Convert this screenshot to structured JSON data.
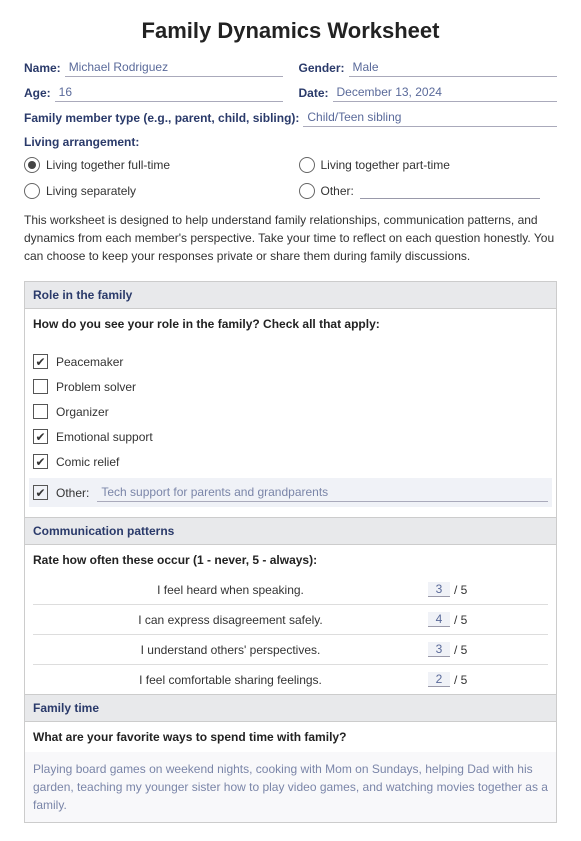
{
  "title": "Family Dynamics Worksheet",
  "fields": {
    "name_label": "Name:",
    "name_value": "Michael Rodriguez",
    "gender_label": "Gender:",
    "gender_value": "Male",
    "age_label": "Age:",
    "age_value": "16",
    "date_label": "Date:",
    "date_value": "December 13, 2024",
    "member_type_label": "Family member type (e.g., parent, child, sibling):",
    "member_type_value": "Child/Teen sibling"
  },
  "living": {
    "heading": "Living arrangement:",
    "options": {
      "full": "Living together full-time",
      "part": "Living together part-time",
      "sep": "Living separately",
      "other": "Other:"
    },
    "other_value": ""
  },
  "intro": "This worksheet is designed to help understand family relationships, communication patterns, and dynamics from each member's perspective. Take your time to reflect on each question honestly. You can choose to keep your responses private or share them during family discussions.",
  "role": {
    "header": "Role in the family",
    "question": "How do you see your role in the family? Check all that apply:",
    "items": {
      "peacemaker": "Peacemaker",
      "problem": "Problem solver",
      "organizer": "Organizer",
      "emotional": "Emotional support",
      "comic": "Comic relief",
      "other_label": "Other:",
      "other_value": "Tech support for parents and grandparents"
    }
  },
  "comm": {
    "header": "Communication patterns",
    "question": "Rate how often these occur (1 - never, 5 - always):",
    "rows": {
      "heard": {
        "label": "I feel heard when speaking.",
        "value": "3"
      },
      "disagree": {
        "label": "I can express disagreement safely.",
        "value": "4"
      },
      "understand": {
        "label": "I understand others' perspectives.",
        "value": "3"
      },
      "feelings": {
        "label": "I feel comfortable sharing feelings.",
        "value": "2"
      }
    },
    "suffix": "/ 5"
  },
  "family_time": {
    "header": "Family time",
    "question": "What are your favorite ways to spend time with family?",
    "answer": "Playing board games on weekend nights, cooking with Mom on Sundays, helping Dad with his garden, teaching my younger sister how to play video games, and watching movies together as a family."
  },
  "colors": {
    "label": "#2a3a6a",
    "input": "#5a6a9a",
    "header_bg": "#e8e9eb",
    "border": "#cccccc"
  }
}
